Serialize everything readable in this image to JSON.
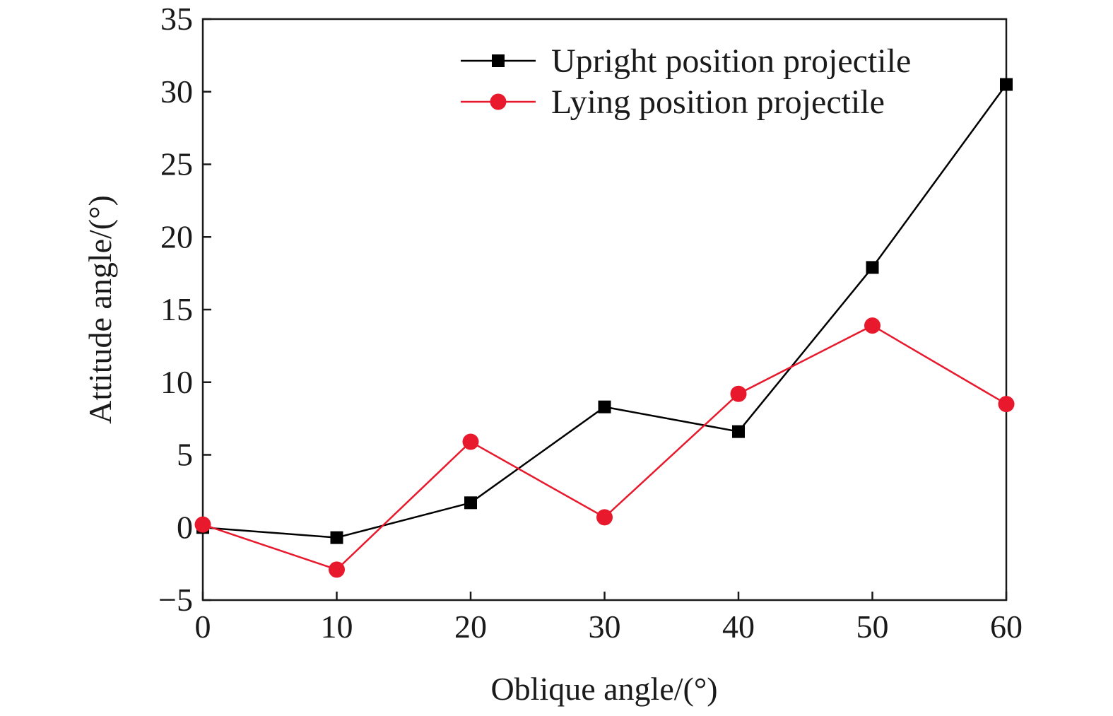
{
  "chart_data": {
    "type": "line",
    "title": "",
    "xlabel": "Oblique angle/(°)",
    "ylabel": "Attitude angle/(°)",
    "xlim": [
      0,
      60
    ],
    "ylim": [
      -5,
      35
    ],
    "x": [
      0,
      10,
      20,
      30,
      40,
      50,
      60
    ],
    "xticks": [
      "0",
      "10",
      "20",
      "30",
      "40",
      "50",
      "60"
    ],
    "yticks": [
      "−5",
      "0",
      "5",
      "10",
      "15",
      "20",
      "25",
      "30",
      "35"
    ],
    "ytick_values": [
      -5,
      0,
      5,
      10,
      15,
      20,
      25,
      30,
      35
    ],
    "grid": false,
    "legend_position": "top-right",
    "series": [
      {
        "name": "Upright position projectile",
        "values": [
          0.0,
          -0.7,
          1.7,
          8.3,
          6.6,
          17.9,
          30.5
        ],
        "color": "#000000",
        "marker": "square"
      },
      {
        "name": "Lying position projectile",
        "values": [
          0.2,
          -2.9,
          5.9,
          0.7,
          9.2,
          13.9,
          8.5
        ],
        "color": "#e8192c",
        "marker": "circle"
      }
    ]
  }
}
